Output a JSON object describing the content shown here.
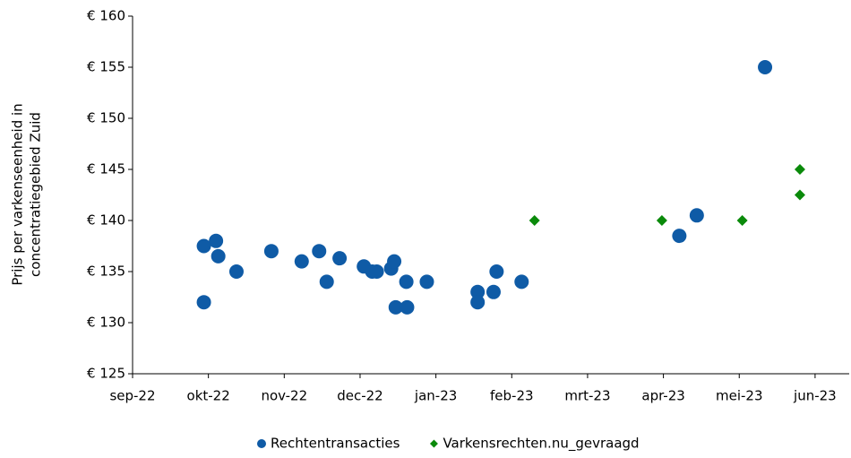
{
  "chart_data": {
    "type": "scatter",
    "y_label": [
      "Prijs per varkenseenheid in",
      "concentratiegebied Zuid"
    ],
    "xlim": [
      0,
      9.45
    ],
    "xticks": [
      {
        "value": 0,
        "label": "sep-22"
      },
      {
        "value": 1,
        "label": "okt-22"
      },
      {
        "value": 2,
        "label": "nov-22"
      },
      {
        "value": 3,
        "label": "dec-22"
      },
      {
        "value": 4,
        "label": "jan-23"
      },
      {
        "value": 5,
        "label": "feb-23"
      },
      {
        "value": 6,
        "label": "mrt-23"
      },
      {
        "value": 7,
        "label": "apr-23"
      },
      {
        "value": 8,
        "label": "mei-23"
      },
      {
        "value": 9,
        "label": "jun-23"
      }
    ],
    "ylim": [
      125,
      160
    ],
    "yticks": [
      {
        "value": 125,
        "label": "€ 125"
      },
      {
        "value": 130,
        "label": "€ 130"
      },
      {
        "value": 135,
        "label": "€ 135"
      },
      {
        "value": 140,
        "label": "€ 140"
      },
      {
        "value": 145,
        "label": "€ 145"
      },
      {
        "value": 150,
        "label": "€ 150"
      },
      {
        "value": 155,
        "label": "€ 155"
      },
      {
        "value": 160,
        "label": "€ 160"
      }
    ],
    "grid": false,
    "legend": "bottom",
    "series": [
      {
        "name": "Rechtentransacties",
        "color": "#0f5ba6",
        "marker": "circle",
        "x": [
          0.94,
          0.94,
          1.1,
          1.13,
          1.37,
          1.83,
          2.23,
          2.46,
          2.56,
          2.73,
          3.05,
          3.16,
          3.22,
          3.41,
          3.45,
          3.47,
          3.61,
          3.62,
          3.88,
          4.55,
          4.55,
          4.76,
          4.8,
          5.13,
          7.21,
          7.44,
          8.34
        ],
        "values": [
          137.5,
          132,
          138,
          136.5,
          135,
          137,
          136,
          137,
          134,
          136.3,
          135.5,
          135,
          135,
          135.3,
          136,
          131.5,
          134,
          131.5,
          134,
          133,
          132,
          133,
          135,
          134,
          138.5,
          140.5,
          155
        ]
      },
      {
        "name": "Varkensrechten.nu_gevraagd",
        "color": "#0a8a0a",
        "marker": "diamond",
        "x": [
          5.3,
          6.98,
          8.04,
          8.8,
          8.8
        ],
        "values": [
          140,
          140,
          140,
          145,
          142.5
        ]
      }
    ]
  }
}
